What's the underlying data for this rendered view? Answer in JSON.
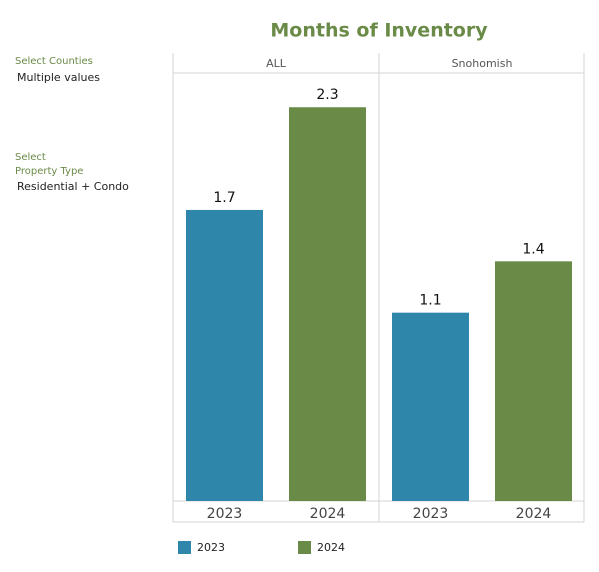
{
  "filters": [
    {
      "label": "Select Counties",
      "value": "Multiple values"
    },
    {
      "label": "Select Property Type",
      "value": "Residential + Condo"
    }
  ],
  "chart_data": {
    "type": "bar",
    "title": "Months of Inventory",
    "panels": [
      "ALL",
      "Snohomish"
    ],
    "series": [
      {
        "name": "2023",
        "color": "#2e86ab",
        "values": [
          1.7,
          1.1
        ]
      },
      {
        "name": "2024",
        "color": "#6a8a47",
        "values": [
          2.3,
          1.4
        ]
      }
    ],
    "ylim": [
      0,
      2.5
    ]
  }
}
